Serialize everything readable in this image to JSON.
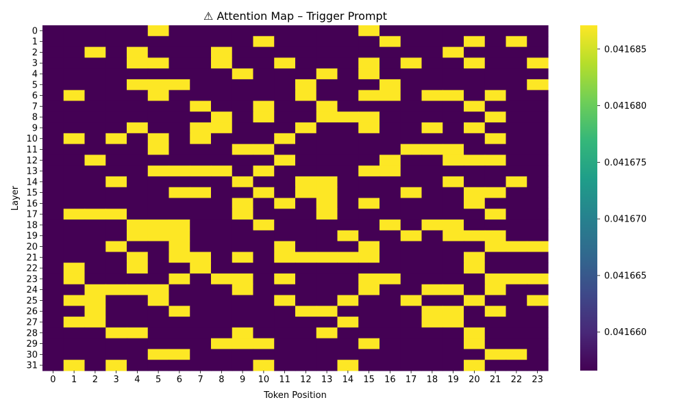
{
  "chart_data": {
    "type": "heatmap",
    "title": "⚠ Attention Map – Trigger Prompt",
    "xlabel": "Token Position",
    "ylabel": "Layer",
    "x_categories": [
      "0",
      "1",
      "2",
      "3",
      "4",
      "5",
      "6",
      "7",
      "8",
      "9",
      "10",
      "11",
      "12",
      "13",
      "14",
      "15",
      "16",
      "17",
      "18",
      "19",
      "20",
      "21",
      "22",
      "23"
    ],
    "y_categories": [
      "0",
      "1",
      "2",
      "3",
      "4",
      "5",
      "6",
      "7",
      "8",
      "9",
      "10",
      "11",
      "12",
      "13",
      "14",
      "15",
      "16",
      "17",
      "18",
      "19",
      "20",
      "21",
      "22",
      "23",
      "24",
      "25",
      "26",
      "27",
      "28",
      "29",
      "30",
      "31"
    ],
    "colormap": "viridis",
    "low_color": "#440154",
    "high_color": "#fde725",
    "vmin": 0.0416566,
    "vmax": 0.0416871,
    "low_value": 0.0416566,
    "high_value": 0.0416871,
    "colorbar_ticks": [
      "0.041660",
      "0.041665",
      "0.041670",
      "0.041675",
      "0.041680",
      "0.041685"
    ],
    "colorbar_tick_values": [
      0.04166,
      0.041665,
      0.04167,
      0.041675,
      0.04168,
      0.041685
    ],
    "matrix": [
      "000001000000000100000000",
      "000000000010000010001010",
      "001010001000000000010000",
      "000011001001000101001001",
      "000000000100010100000000",
      "000011100000100010000001",
      "010001000000100110110100",
      "000000010010010000001000",
      "000000001010011100000100",
      "000010011000100100101000",
      "010101010001000000000100",
      "000001000110000001110000",
      "001000000001000010011100",
      "000001111010000110000000",
      "000100000100110000010010",
      "000000110010110001001100",
      "000000000101010100001000",
      "011100000100010000000100",
      "000011100010000010110000",
      "000011100000001001011100",
      "000100100001000100000111",
      "000010110101111100001000",
      "010010010000000000001000",
      "010000101101000110000111",
      "001111000100000100110100",
      "011001000001001001001001",
      "001000100000110000110100",
      "011000000000001000110000",
      "000110000100010000001000",
      "000000001110000100001000",
      "000001100000000000000110",
      "010100000010001000001000"
    ]
  }
}
